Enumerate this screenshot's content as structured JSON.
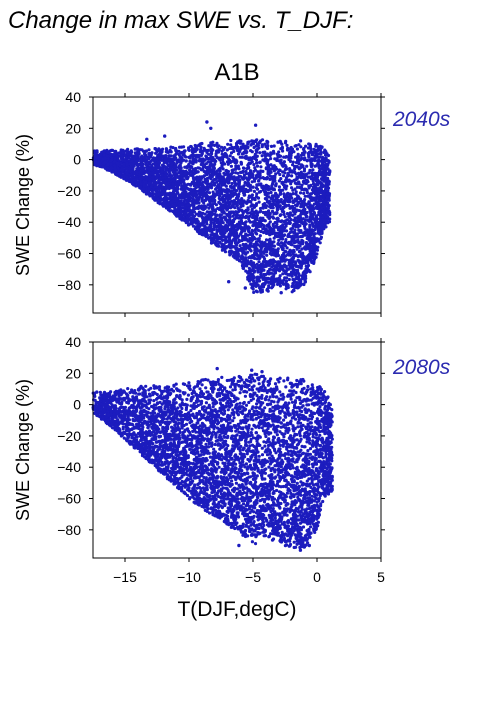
{
  "figure": {
    "title": "Change in max SWE vs. T_DJF:",
    "scenario": "A1B",
    "point_color": "#1c1cbe",
    "period_label_color": "#2b2bb0"
  },
  "chart_data": [
    {
      "type": "scatter",
      "period_label": "2040s",
      "xlabel": "",
      "ylabel": "SWE Change (%)",
      "xlim": [
        -17.5,
        5
      ],
      "ylim": [
        -98,
        40
      ],
      "yticks": [
        "40",
        "20",
        "0",
        "−20",
        "−40",
        "−60",
        "−80"
      ],
      "envelope": {
        "x": [
          -17.5,
          -16,
          -14,
          -12,
          -10,
          -8,
          -6,
          -5,
          -4,
          -3,
          -2,
          -1,
          0,
          0.5,
          1
        ],
        "upper": [
          6,
          6,
          7,
          8,
          9,
          12,
          13,
          13,
          13,
          12,
          12,
          12,
          11,
          8,
          2
        ],
        "lower": [
          -3,
          -8,
          -18,
          -30,
          -42,
          -55,
          -65,
          -85,
          -85,
          -80,
          -85,
          -80,
          -62,
          -45,
          -40
        ]
      },
      "outliers": [
        [
          -8.6,
          24
        ],
        [
          -8.3,
          20
        ],
        [
          -4.8,
          22
        ],
        [
          -11.9,
          15
        ],
        [
          -13.3,
          13
        ],
        [
          -6.9,
          -78
        ],
        [
          -5.6,
          -82
        ],
        [
          -2.8,
          -85
        ]
      ]
    },
    {
      "type": "scatter",
      "period_label": "2080s",
      "xlabel": "T(DJF,degC)",
      "ylabel": "SWE Change (%)",
      "xlim": [
        -17.5,
        5
      ],
      "ylim": [
        -98,
        40
      ],
      "xticks": [
        "−15",
        "−10",
        "−5",
        "0",
        "5"
      ],
      "yticks": [
        "40",
        "20",
        "0",
        "−20",
        "−40",
        "−60",
        "−80"
      ],
      "envelope": {
        "x": [
          -17.5,
          -16,
          -14,
          -12,
          -10,
          -8,
          -6,
          -5,
          -4,
          -3,
          -2,
          -1,
          0,
          0.5,
          1.2
        ],
        "upper": [
          8,
          9,
          12,
          13,
          14,
          18,
          20,
          21,
          20,
          18,
          17,
          16,
          14,
          10,
          2
        ],
        "lower": [
          -5,
          -15,
          -30,
          -45,
          -60,
          -72,
          -82,
          -90,
          -85,
          -88,
          -92,
          -92,
          -80,
          -60,
          -55
        ]
      },
      "outliers": [
        [
          -7.8,
          23
        ],
        [
          -5.1,
          22
        ],
        [
          -4.3,
          21
        ],
        [
          -17.2,
          8
        ],
        [
          -6.1,
          -90
        ],
        [
          -1.3,
          -93
        ],
        [
          -0.6,
          -90
        ]
      ]
    }
  ]
}
